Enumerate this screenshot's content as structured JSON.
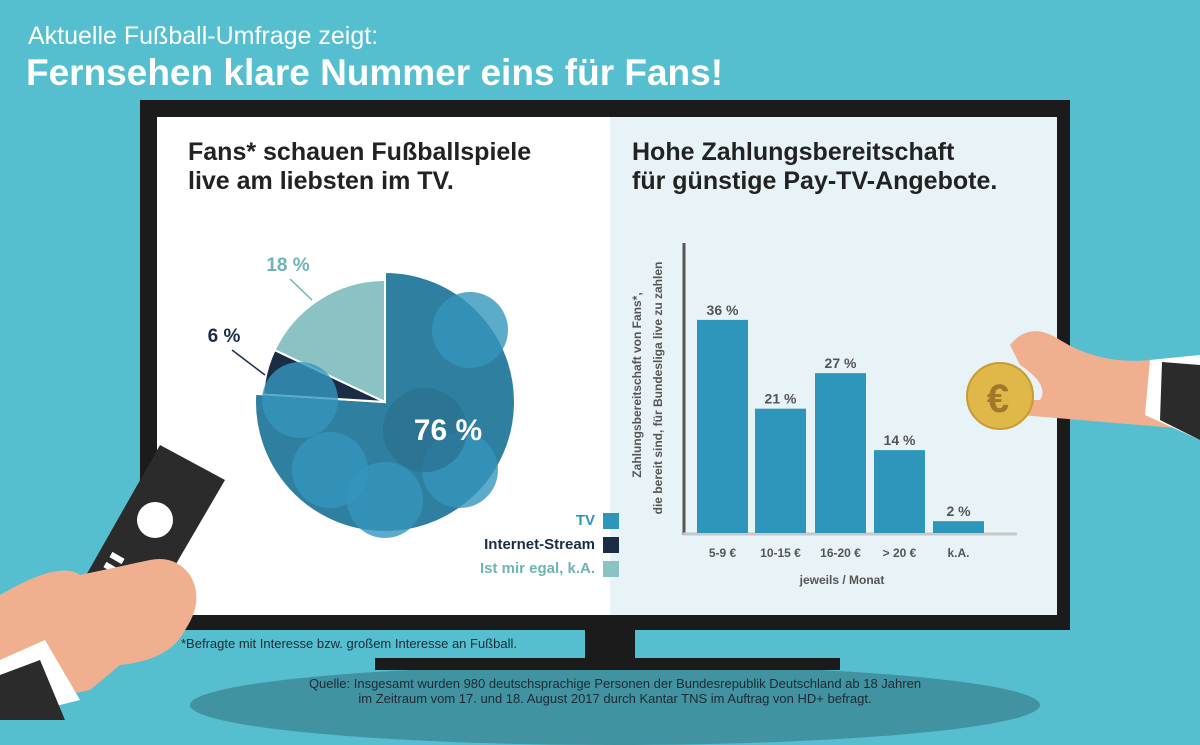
{
  "header": {
    "kicker": "Aktuelle Fußball-Umfrage zeigt:",
    "headline": "Fernsehen klare Nummer eins für Fans!"
  },
  "footnote": "*Befragte mit Interesse bzw. großem Interesse an Fußball.",
  "source": [
    "Quelle: Insgesamt wurden 980 deutschsprachige Personen der Bundesrepublik Deutschland ab 18 Jahren",
    "im Zeitraum vom 17. und 18. August 2017 durch Kantar TNS im Auftrag von HD+ befragt."
  ],
  "chart_data": [
    {
      "type": "pie",
      "title": [
        "Fans* schauen Fußballspiele",
        "live am liebsten im TV."
      ],
      "slices": [
        {
          "name": "TV",
          "value": 76,
          "label": "76 %",
          "color": "#2e95bb"
        },
        {
          "name": "Internet-Stream",
          "value": 6,
          "label": "6 %",
          "color": "#1a2d45"
        },
        {
          "name": "Ist mir egal, k.A.",
          "value": 18,
          "label": "18 %",
          "color": "#8bc3c4"
        }
      ],
      "legend_placement": "bottom-right"
    },
    {
      "type": "bar",
      "title": [
        "Hohe Zahlungsbereitschaft",
        "für günstige Pay-TV-Angebote."
      ],
      "categories": [
        "5-9 €",
        "10-15 €",
        "16-20 €",
        "> 20 €",
        "k.A."
      ],
      "values": [
        36,
        21,
        27,
        14,
        2
      ],
      "labels": [
        "36 %",
        "21 %",
        "27 %",
        "14 %",
        "2 %"
      ],
      "ylabel": [
        "Zahlungsbereitschaft von Fans*,",
        "die bereit sind, für Bundesliga live zu zahlen"
      ],
      "xlabel": "jeweils / Monat",
      "ylim": [
        0,
        45
      ],
      "grid": false,
      "color": "#2e95bb"
    }
  ]
}
